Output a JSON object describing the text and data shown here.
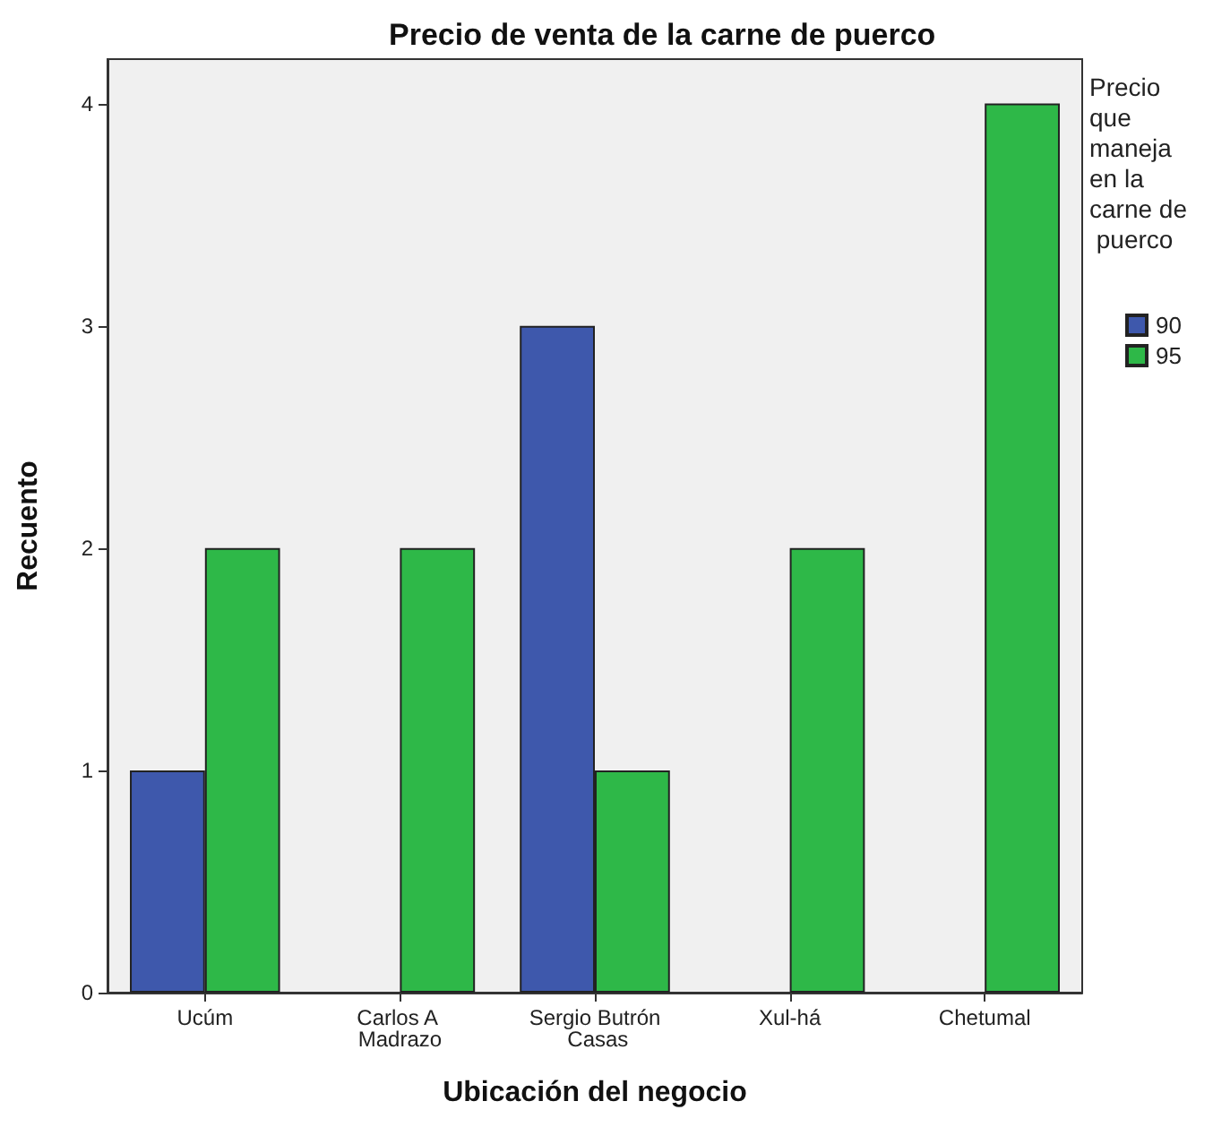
{
  "chart_data": {
    "type": "bar",
    "title": "Precio de venta de la carne de puerco",
    "xlabel": "Ubicación del negocio",
    "ylabel": "Recuento",
    "legend_title": "Precio que maneja en la carne de puerco",
    "categories": [
      "Ucúm",
      "Carlos A Madrazo",
      "Sergio Butrón Casas",
      "Xul-há",
      "Chetumal"
    ],
    "series": [
      {
        "name": "90",
        "color": "#3e58ac",
        "values": [
          1,
          null,
          3,
          null,
          null
        ]
      },
      {
        "name": "95",
        "color": "#2eb848",
        "values": [
          2,
          2,
          1,
          2,
          4
        ]
      }
    ],
    "ylim": [
      0,
      4.2
    ],
    "yticks": [
      0,
      1,
      2,
      3,
      4
    ],
    "grid": false,
    "legend": "right"
  }
}
